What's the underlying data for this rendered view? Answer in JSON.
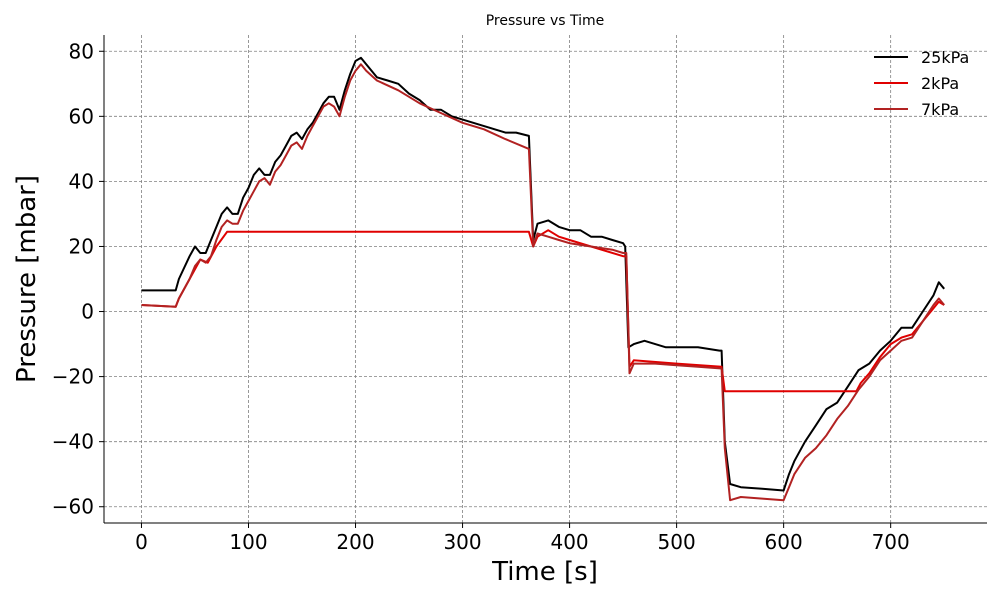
{
  "chart_data": {
    "type": "line",
    "title": "Pressure vs Time",
    "xlabel": "Time [s]",
    "ylabel": "Pressure [mbar]",
    "xlim": [
      -35,
      790
    ],
    "ylim": [
      -65,
      85
    ],
    "xticks": [
      0,
      100,
      200,
      300,
      400,
      500,
      600,
      700
    ],
    "yticks": [
      -60,
      -40,
      -20,
      0,
      20,
      40,
      60,
      80
    ],
    "xtick_labels": [
      "0",
      "100",
      "200",
      "300",
      "400",
      "500",
      "600",
      "700"
    ],
    "ytick_labels": [
      "−60",
      "−40",
      "−20",
      "0",
      "20",
      "40",
      "60",
      "80"
    ],
    "grid": true,
    "legend_position": "top-right",
    "series": [
      {
        "name": "25kPa",
        "color": "#000000",
        "points": [
          [
            0,
            6.5
          ],
          [
            32,
            6.5
          ],
          [
            35,
            10
          ],
          [
            45,
            17
          ],
          [
            50,
            20
          ],
          [
            55,
            18
          ],
          [
            60,
            18
          ],
          [
            65,
            22
          ],
          [
            70,
            26
          ],
          [
            75,
            30
          ],
          [
            80,
            32
          ],
          [
            85,
            30
          ],
          [
            90,
            30
          ],
          [
            95,
            35
          ],
          [
            100,
            38
          ],
          [
            105,
            42
          ],
          [
            110,
            44
          ],
          [
            115,
            42
          ],
          [
            120,
            42
          ],
          [
            125,
            46
          ],
          [
            130,
            48
          ],
          [
            135,
            51
          ],
          [
            140,
            54
          ],
          [
            145,
            55
          ],
          [
            150,
            53
          ],
          [
            155,
            56
          ],
          [
            160,
            58
          ],
          [
            165,
            61
          ],
          [
            170,
            64
          ],
          [
            175,
            66
          ],
          [
            180,
            66
          ],
          [
            185,
            62
          ],
          [
            190,
            68
          ],
          [
            195,
            73
          ],
          [
            200,
            77
          ],
          [
            205,
            78
          ],
          [
            210,
            76
          ],
          [
            220,
            72
          ],
          [
            230,
            71
          ],
          [
            240,
            70
          ],
          [
            250,
            67
          ],
          [
            260,
            65
          ],
          [
            270,
            62
          ],
          [
            280,
            62
          ],
          [
            290,
            60
          ],
          [
            300,
            59
          ],
          [
            310,
            58
          ],
          [
            320,
            57
          ],
          [
            330,
            56
          ],
          [
            340,
            55
          ],
          [
            350,
            55
          ],
          [
            362,
            54
          ],
          [
            366,
            22
          ],
          [
            370,
            27
          ],
          [
            380,
            28
          ],
          [
            390,
            26
          ],
          [
            400,
            25
          ],
          [
            410,
            25
          ],
          [
            420,
            23
          ],
          [
            430,
            23
          ],
          [
            440,
            22
          ],
          [
            450,
            21
          ],
          [
            452,
            20
          ],
          [
            455,
            -11
          ],
          [
            460,
            -10
          ],
          [
            470,
            -9
          ],
          [
            480,
            -10
          ],
          [
            490,
            -11
          ],
          [
            500,
            -11
          ],
          [
            520,
            -11
          ],
          [
            540,
            -12
          ],
          [
            542,
            -12
          ],
          [
            545,
            -40
          ],
          [
            550,
            -53
          ],
          [
            560,
            -54
          ],
          [
            580,
            -54.5
          ],
          [
            600,
            -55
          ],
          [
            605,
            -50
          ],
          [
            610,
            -46
          ],
          [
            620,
            -40
          ],
          [
            630,
            -35
          ],
          [
            640,
            -30
          ],
          [
            650,
            -28
          ],
          [
            660,
            -23
          ],
          [
            670,
            -18
          ],
          [
            680,
            -16
          ],
          [
            690,
            -12
          ],
          [
            700,
            -9
          ],
          [
            710,
            -5
          ],
          [
            720,
            -5
          ],
          [
            730,
            0
          ],
          [
            740,
            5
          ],
          [
            745,
            9
          ],
          [
            750,
            7
          ]
        ]
      },
      {
        "name": "2kPa",
        "color": "#e00000",
        "points": [
          [
            0,
            2
          ],
          [
            32,
            1.5
          ],
          [
            35,
            4
          ],
          [
            45,
            10
          ],
          [
            55,
            16
          ],
          [
            62,
            15
          ],
          [
            70,
            20
          ],
          [
            80,
            24.5
          ],
          [
            200,
            24.5
          ],
          [
            300,
            24.5
          ],
          [
            362,
            24.5
          ],
          [
            366,
            20
          ],
          [
            370,
            23
          ],
          [
            380,
            25
          ],
          [
            390,
            23
          ],
          [
            400,
            22
          ],
          [
            450,
            17
          ],
          [
            453,
            17
          ],
          [
            456,
            -17
          ],
          [
            460,
            -15
          ],
          [
            500,
            -16
          ],
          [
            542,
            -17
          ],
          [
            545,
            -24.5
          ],
          [
            600,
            -24.5
          ],
          [
            640,
            -24.5
          ],
          [
            668,
            -24.5
          ],
          [
            672,
            -22
          ],
          [
            680,
            -19
          ],
          [
            690,
            -14
          ],
          [
            700,
            -10
          ],
          [
            710,
            -8
          ],
          [
            720,
            -7
          ],
          [
            730,
            -3
          ],
          [
            740,
            1
          ],
          [
            745,
            3
          ],
          [
            750,
            2
          ]
        ]
      },
      {
        "name": "7kPa",
        "color": "#b22222",
        "points": [
          [
            0,
            2
          ],
          [
            32,
            1.5
          ],
          [
            35,
            4
          ],
          [
            45,
            10
          ],
          [
            50,
            14
          ],
          [
            55,
            16
          ],
          [
            60,
            15
          ],
          [
            65,
            17
          ],
          [
            70,
            22
          ],
          [
            75,
            26
          ],
          [
            80,
            28
          ],
          [
            85,
            27
          ],
          [
            90,
            27
          ],
          [
            95,
            31
          ],
          [
            100,
            34
          ],
          [
            105,
            37
          ],
          [
            110,
            40
          ],
          [
            115,
            41
          ],
          [
            120,
            39
          ],
          [
            125,
            43
          ],
          [
            130,
            45
          ],
          [
            135,
            48
          ],
          [
            140,
            51
          ],
          [
            145,
            52
          ],
          [
            150,
            50
          ],
          [
            155,
            54
          ],
          [
            160,
            57
          ],
          [
            165,
            60
          ],
          [
            170,
            63
          ],
          [
            175,
            64
          ],
          [
            180,
            63
          ],
          [
            185,
            60
          ],
          [
            190,
            66
          ],
          [
            195,
            71
          ],
          [
            200,
            74
          ],
          [
            205,
            76
          ],
          [
            210,
            74
          ],
          [
            220,
            71
          ],
          [
            240,
            68
          ],
          [
            260,
            64
          ],
          [
            280,
            61
          ],
          [
            300,
            58
          ],
          [
            320,
            56
          ],
          [
            340,
            53
          ],
          [
            362,
            50
          ],
          [
            366,
            20
          ],
          [
            370,
            24
          ],
          [
            380,
            23
          ],
          [
            390,
            22
          ],
          [
            400,
            21
          ],
          [
            420,
            20
          ],
          [
            440,
            19
          ],
          [
            450,
            18
          ],
          [
            453,
            18
          ],
          [
            456,
            -19
          ],
          [
            460,
            -16
          ],
          [
            480,
            -16
          ],
          [
            500,
            -16.5
          ],
          [
            520,
            -17
          ],
          [
            542,
            -17.5
          ],
          [
            545,
            -42
          ],
          [
            550,
            -58
          ],
          [
            560,
            -57
          ],
          [
            580,
            -57.5
          ],
          [
            600,
            -58
          ],
          [
            605,
            -54
          ],
          [
            610,
            -50
          ],
          [
            620,
            -45
          ],
          [
            630,
            -42
          ],
          [
            640,
            -38
          ],
          [
            650,
            -33
          ],
          [
            660,
            -29
          ],
          [
            670,
            -24
          ],
          [
            680,
            -20
          ],
          [
            690,
            -15
          ],
          [
            700,
            -12
          ],
          [
            710,
            -9
          ],
          [
            720,
            -8
          ],
          [
            730,
            -3
          ],
          [
            740,
            2
          ],
          [
            745,
            4
          ],
          [
            750,
            2
          ]
        ]
      }
    ]
  }
}
